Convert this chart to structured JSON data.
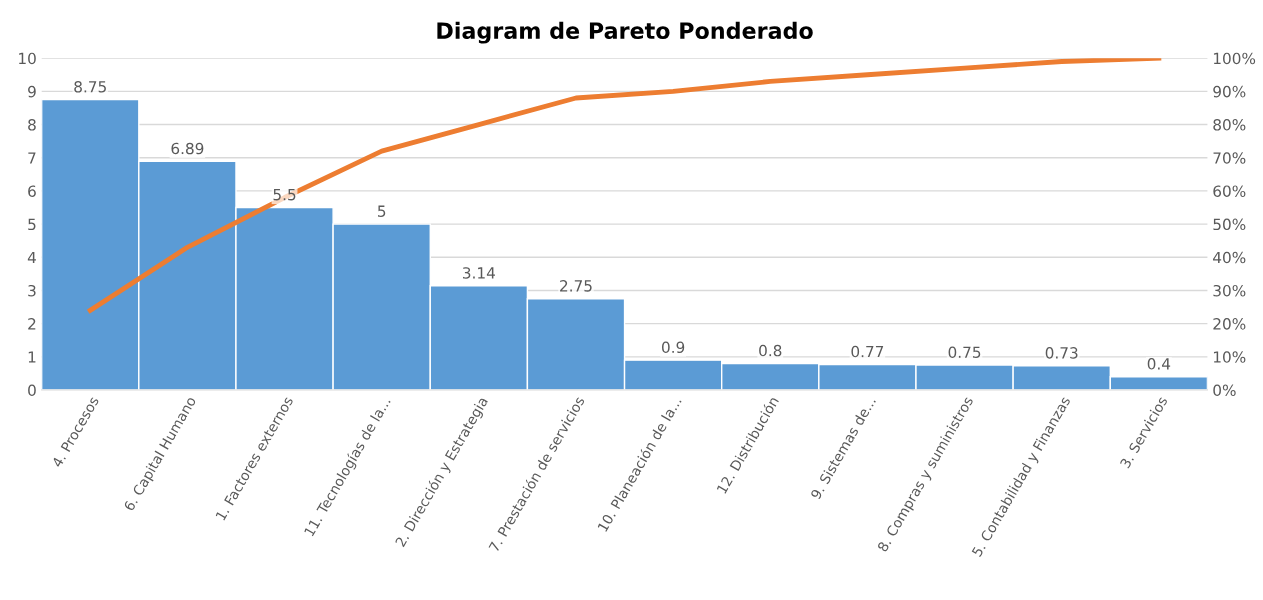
{
  "chart_data": {
    "type": "bar",
    "title": "Diagram de Pareto Ponderado",
    "categories": [
      "4. Procesos",
      "6. Capital Humano",
      "1. Factores externos",
      "11. Tecnologías de la...",
      "2. Dirección y Estrategia",
      "7. Prestación de servicios",
      "10. Planeación de la...",
      "12. Distribución",
      "9. Sistemas de...",
      "8. Compras y suministros",
      "5. Contabilidad y Finanzas",
      "3. Servicios"
    ],
    "series": [
      {
        "color": "#5b9bd5",
        "values": [
          8.75,
          6.89,
          5.5,
          5,
          3.14,
          2.75,
          0.9,
          0.8,
          0.77,
          0.75,
          0.73,
          0.4
        ],
        "value_labels": [
          "8.75",
          "6.89",
          "5.5",
          "5",
          "3.14",
          "2.75",
          "0.9",
          "0.8",
          "0.77",
          "0.75",
          "0.73",
          "0.4"
        ]
      },
      {
        "type": "line",
        "axis": "y2",
        "color": "#ed7d31",
        "values": [
          24,
          43,
          58,
          72,
          80,
          88,
          90,
          93,
          95,
          97,
          99,
          100
        ]
      }
    ],
    "ylim": [
      0,
      10
    ],
    "yticks": [
      0,
      1,
      2,
      3,
      4,
      5,
      6,
      7,
      8,
      9,
      10
    ],
    "y2lim": [
      0,
      100
    ],
    "y2ticks": [
      {
        "value": 0,
        "label": "0%"
      },
      {
        "value": 10,
        "label": "10%"
      },
      {
        "value": 20,
        "label": "20%"
      },
      {
        "value": 30,
        "label": "30%"
      },
      {
        "value": 40,
        "label": "40%"
      },
      {
        "value": 50,
        "label": "50%"
      },
      {
        "value": 60,
        "label": "60%"
      },
      {
        "value": 70,
        "label": "70%"
      },
      {
        "value": 80,
        "label": "80%"
      },
      {
        "value": 90,
        "label": "90%"
      },
      {
        "value": 100,
        "label": "100%"
      }
    ],
    "grid": "y",
    "marker": "none",
    "line_style": "solid"
  }
}
